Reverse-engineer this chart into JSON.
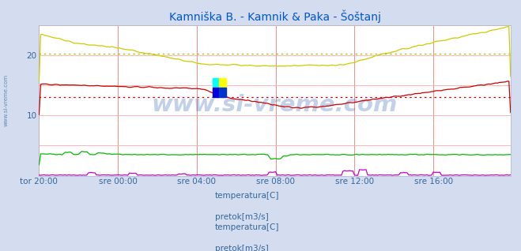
{
  "title": "Kamniška B. - Kamnik & Paka - Šoštanj",
  "title_color": "#0055cc",
  "bg_color": "#d4ddf0",
  "plot_bg_color": "#ffffff",
  "xlim": [
    0,
    287
  ],
  "ylim": [
    0,
    25
  ],
  "yticks": [
    10,
    20
  ],
  "xtick_labels": [
    "tor 20:00",
    "sre 00:00",
    "sre 04:00",
    "sre 08:00",
    "sre 12:00",
    "sre 16:00"
  ],
  "xtick_positions": [
    0,
    48,
    96,
    144,
    192,
    240
  ],
  "grid_color_v": "#ff7777",
  "grid_color_h": "#ffaaaa",
  "hline1_y": 13.0,
  "hline1_color": "#cc0000",
  "hline2_y": 20.3,
  "hline2_color": "#bbbb00",
  "watermark": "www.si-vreme.com",
  "watermark_color": "#1144aa",
  "watermark_alpha": 0.25,
  "sidebar_text": "www.si-vreme.com",
  "sidebar_color": "#336699",
  "legend_labels": [
    "temperatura[C]",
    "pretok[m3/s]",
    "temperatura[C]",
    "pretok[m3/s]"
  ],
  "legend_colors": [
    "#cc0000",
    "#00bb00",
    "#cccc00",
    "#cc00cc"
  ],
  "n_points": 288
}
